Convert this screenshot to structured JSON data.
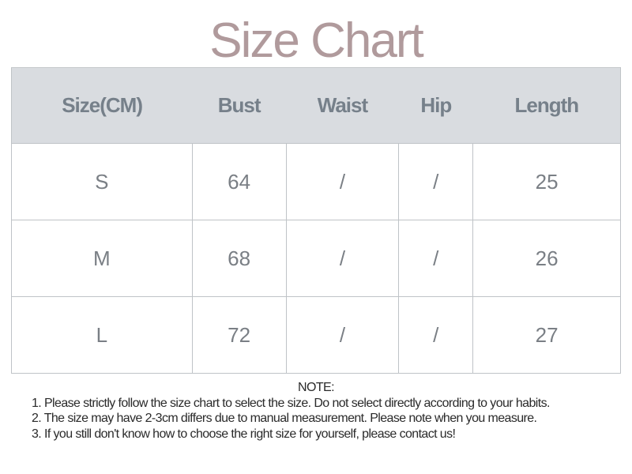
{
  "title": "Size Chart",
  "table": {
    "headers": [
      "Size(CM)",
      "Bust",
      "Waist",
      "Hip",
      "Length"
    ],
    "rows": [
      [
        "S",
        "64",
        "/",
        "/",
        "25"
      ],
      [
        "M",
        "68",
        "/",
        "/",
        "26"
      ],
      [
        "L",
        "72",
        "/",
        "/",
        "27"
      ]
    ]
  },
  "notes": {
    "heading": "NOTE:",
    "items": [
      "1. Please strictly follow the size chart  to select the size. Do not select directly according to your habits.",
      "2. The size may have 2-3cm differs due to manual measurement. Please note when you measure.",
      "3. If you still don't know how to choose the right size for yourself, please contact us!"
    ]
  },
  "colors": {
    "title": "#b09a9c",
    "header_bg": "#d9dce0",
    "header_text": "#76808a"
  }
}
